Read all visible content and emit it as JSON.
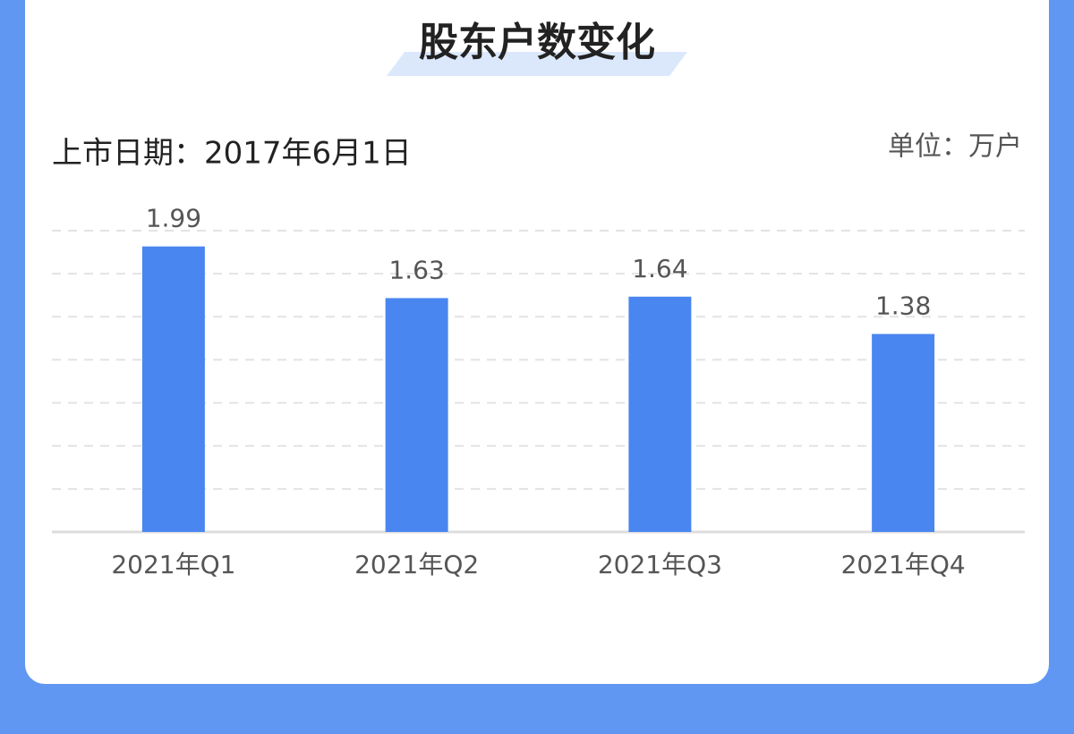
{
  "chart_data": {
    "type": "bar",
    "title": "股东户数变化",
    "subtitle": "上市日期：2017年6月1日",
    "unit": "单位：万户",
    "categories": [
      "2021年Q1",
      "2021年Q2",
      "2021年Q3",
      "2021年Q4"
    ],
    "values": [
      1.99,
      1.63,
      1.64,
      1.38
    ],
    "color": "#4a86f0",
    "ylim": [
      0,
      2.1
    ],
    "yticks": [
      0.3,
      0.6,
      0.9,
      1.2,
      1.5,
      1.8,
      2.1
    ],
    "grid": true
  }
}
